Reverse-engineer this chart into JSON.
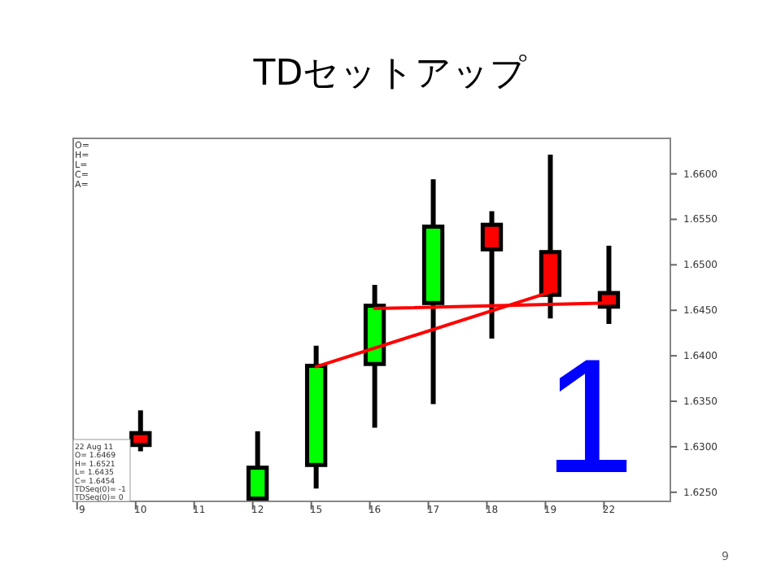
{
  "chart_data": {
    "type": "candlestick",
    "title": "TDセットアップ",
    "categories": [
      "9",
      "10",
      "11",
      "12",
      "15",
      "16",
      "17",
      "18",
      "19",
      "22"
    ],
    "ohlc": [
      null,
      [
        1.6315,
        1.634,
        1.6295,
        1.6302
      ],
      null,
      [
        1.6243,
        1.6317,
        1.6241,
        1.6277
      ],
      [
        1.628,
        1.6411,
        1.6254,
        1.6389
      ],
      [
        1.6391,
        1.6478,
        1.6321,
        1.6455
      ],
      [
        1.6458,
        1.6594,
        1.6347,
        1.6542
      ],
      [
        1.6544,
        1.6559,
        1.6419,
        1.6517
      ],
      [
        1.6514,
        1.6621,
        1.6441,
        1.6467
      ],
      [
        1.6469,
        1.6521,
        1.6435,
        1.6454
      ]
    ],
    "colors": [
      null,
      "#ff0000",
      null,
      "#00ff00",
      "#00ff00",
      "#00ff00",
      "#00ff00",
      "#ff0000",
      "#ff0000",
      "#ff0000"
    ],
    "series": [
      {
        "type": "line",
        "color": "#ff0000",
        "x": [
          "15",
          "19"
        ],
        "values": [
          1.6388,
          1.647
        ]
      },
      {
        "type": "line",
        "color": "#ff0000",
        "x": [
          "16",
          "22"
        ],
        "values": [
          1.6452,
          1.6458
        ]
      }
    ],
    "ylim": [
      1.624,
      1.6639
    ],
    "yticks": [
      {
        "value": 1.625,
        "label": "1.6250"
      },
      {
        "value": 1.63,
        "label": "1.6300"
      },
      {
        "value": 1.635,
        "label": "1.6350"
      },
      {
        "value": 1.64,
        "label": "1.6400"
      },
      {
        "value": 1.645,
        "label": "1.6450"
      },
      {
        "value": 1.65,
        "label": "1.6500"
      },
      {
        "value": 1.655,
        "label": "1.6550"
      },
      {
        "value": 1.66,
        "label": "1.6600"
      }
    ],
    "grid": false,
    "annotations": [
      "O=",
      "H=",
      "L=",
      "C=",
      "A=",
      "22 Aug 11",
      "O= 1.6469",
      "H= 1.6521",
      "L= 1.6435",
      "C= 1.6454",
      "TDSeq(0)= -1",
      "TDSeq(0)= 0",
      "1",
      "9"
    ]
  }
}
